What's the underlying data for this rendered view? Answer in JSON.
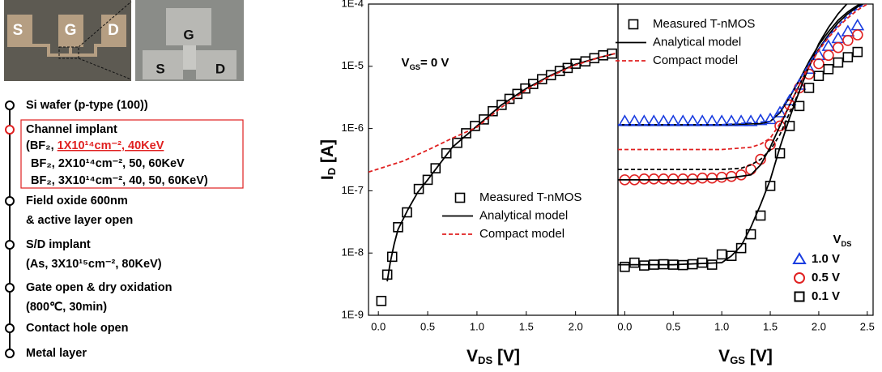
{
  "micrograph": {
    "left_labels": [
      "S",
      "G",
      "D"
    ],
    "right_labels": [
      "G",
      "S",
      "D"
    ]
  },
  "process_flow": {
    "steps": [
      {
        "lines": [
          "Si wafer (p-type (100))"
        ]
      },
      {
        "lines": [
          "Channel implant",
          "(BF₂, ",
          "1X10¹⁴cm⁻², 40KeV",
          "BF₂, 2X10¹⁴cm⁻², 50, 60KeV",
          "BF₂, 3X10¹⁴cm⁻², 40, 50, 60KeV)"
        ],
        "highlight": "#e02020"
      },
      {
        "lines": [
          "Field oxide 600nm",
          "& active layer open"
        ]
      },
      {
        "lines": [
          "S/D implant",
          "(As, 3X10¹⁵cm⁻², 80KeV)"
        ]
      },
      {
        "lines": [
          "Gate open & dry oxidation",
          "(800℃, 30min)"
        ]
      },
      {
        "lines": [
          "Contact hole open"
        ]
      },
      {
        "lines": [
          "Metal layer"
        ]
      }
    ]
  },
  "chart_data": [
    {
      "type": "line",
      "yscale": "log",
      "xlabel": {
        "text": "V",
        "sub": "DS",
        "suffix": " [V]"
      },
      "ylabel": {
        "text": "I",
        "sub": "D",
        "suffix": " [A]"
      },
      "annotation": {
        "text": "V",
        "sub": "GS",
        "suffix": "= 0 V"
      },
      "xlim": [
        -0.1,
        2.43
      ],
      "ylim": [
        1e-09,
        0.0001
      ],
      "xticks": [
        {
          "value": 0,
          "label": "0.0"
        },
        {
          "value": 0.5,
          "label": "0.5"
        },
        {
          "value": 1,
          "label": "1.0"
        },
        {
          "value": 1.5,
          "label": "1.5"
        },
        {
          "value": 2,
          "label": "2.0"
        }
      ],
      "yticks": [
        {
          "value": 1e-09,
          "label": "1E-9"
        },
        {
          "value": 1e-08,
          "label": "1E-8"
        },
        {
          "value": 1e-07,
          "label": "1E-7"
        },
        {
          "value": 1e-06,
          "label": "1E-6"
        },
        {
          "value": 1e-05,
          "label": "1E-5"
        },
        {
          "value": 0.0001,
          "label": "1E-4"
        }
      ],
      "legend": [
        "Measured T-nMOS",
        "Analytical model",
        "Compact model"
      ],
      "series": [
        {
          "marker": "square",
          "color": "#000000",
          "x": [
            0.03,
            0.09,
            0.14,
            0.2,
            0.29,
            0.41,
            0.5,
            0.58,
            0.69,
            0.8,
            0.89,
            0.98,
            1.07,
            1.16,
            1.25,
            1.33,
            1.41,
            1.49,
            1.57,
            1.66,
            1.75,
            1.84,
            1.92,
            2.0,
            2.1,
            2.19,
            2.28,
            2.37
          ],
          "values": [
            1.7e-09,
            4.5e-09,
            8.7e-09,
            2.6e-08,
            4.5e-08,
            1.07e-07,
            1.5e-07,
            2.3e-07,
            4e-07,
            5.9e-07,
            8.4e-07,
            1.1e-06,
            1.4e-06,
            1.9e-06,
            2.4e-06,
            3e-06,
            3.6e-06,
            4.4e-06,
            5.2e-06,
            6.2e-06,
            7.2e-06,
            8.4e-06,
            9.4e-06,
            1.1e-05,
            1.2e-05,
            1.35e-05,
            1.5e-05,
            1.6e-05
          ]
        },
        {
          "style": "solid",
          "color": "#000000",
          "x": [
            0.09,
            0.12,
            0.16,
            0.2,
            0.3,
            0.4,
            0.5,
            0.75,
            1.0,
            1.25,
            1.5,
            1.75,
            2.0,
            2.25,
            2.4
          ],
          "values": [
            3.5e-09,
            7e-09,
            1.4e-08,
            2.4e-08,
            5e-08,
            9.5e-08,
            1.5e-07,
            5e-07,
            1.1e-06,
            2.4e-06,
            4.4e-06,
            7.2e-06,
            1.08e-05,
            1.4e-05,
            1.6e-05
          ]
        },
        {
          "style": "dashed",
          "color": "#e02020",
          "x": [
            -0.1,
            0.25,
            0.5,
            0.75,
            1.0,
            1.25,
            1.5,
            1.75,
            2.0,
            2.25,
            2.4
          ],
          "values": [
            2e-07,
            3e-07,
            4.5e-07,
            7e-07,
            1.05e-06,
            2.2e-06,
            4.2e-06,
            7e-06,
            1.05e-05,
            1.4e-05,
            1.6e-05
          ]
        }
      ]
    },
    {
      "type": "line",
      "yscale": "log",
      "xlabel": {
        "text": "V",
        "sub": "GS",
        "suffix": " [V]"
      },
      "xlim": [
        -0.07,
        2.56
      ],
      "ylim": [
        1e-09,
        0.0001
      ],
      "xticks": [
        {
          "value": 0,
          "label": "0.0"
        },
        {
          "value": 0.5,
          "label": "0.5"
        },
        {
          "value": 1,
          "label": "1.0"
        },
        {
          "value": 1.5,
          "label": "1.5"
        },
        {
          "value": 2,
          "label": "2.0"
        },
        {
          "value": 2.5,
          "label": "2.5"
        }
      ],
      "legend": [
        "Measured T-nMOS",
        "Analytical model",
        "Compact model"
      ],
      "vds_legend": {
        "title": {
          "text": "V",
          "sub": "DS"
        },
        "items": [
          "1.0 V",
          "0.5 V",
          "0.1 V"
        ],
        "markers": [
          "triangle",
          "circle",
          "square"
        ],
        "colors": [
          "#1a3de0",
          "#e02020",
          "#000000"
        ]
      },
      "series": [
        {
          "marker": "triangle",
          "color": "#1a3de0",
          "x": [
            0,
            0.1,
            0.2,
            0.3,
            0.4,
            0.5,
            0.6,
            0.7,
            0.8,
            0.9,
            1.0,
            1.1,
            1.2,
            1.3,
            1.4,
            1.5,
            1.6,
            1.7,
            1.8,
            1.9,
            2.0,
            2.1,
            2.2,
            2.3,
            2.4
          ],
          "values": [
            1.3e-06,
            1.3e-06,
            1.3e-06,
            1.3e-06,
            1.3e-06,
            1.3e-06,
            1.3e-06,
            1.3e-06,
            1.3e-06,
            1.3e-06,
            1.3e-06,
            1.3e-06,
            1.3e-06,
            1.3e-06,
            1.35e-06,
            1.4e-06,
            1.8e-06,
            2.8e-06,
            5e-06,
            9e-06,
            1.5e-05,
            2.1e-05,
            2.8e-05,
            3.6e-05,
            4.5e-05
          ]
        },
        {
          "marker": "circle",
          "color": "#e02020",
          "x": [
            0,
            0.1,
            0.2,
            0.3,
            0.4,
            0.5,
            0.6,
            0.7,
            0.8,
            0.9,
            1.0,
            1.1,
            1.2,
            1.3,
            1.4,
            1.5,
            1.6,
            1.7,
            1.8,
            1.9,
            2.0,
            2.1,
            2.2,
            2.3,
            2.4
          ],
          "values": [
            1.5e-07,
            1.5e-07,
            1.55e-07,
            1.55e-07,
            1.55e-07,
            1.55e-07,
            1.55e-07,
            1.55e-07,
            1.6e-07,
            1.6e-07,
            1.65e-07,
            1.7e-07,
            1.8e-07,
            2.2e-07,
            3.2e-07,
            5.5e-07,
            1.1e-06,
            2.4e-06,
            4.5e-06,
            7.5e-06,
            1.1e-05,
            1.5e-05,
            2e-05,
            2.6e-05,
            3.2e-05
          ]
        },
        {
          "marker": "square",
          "color": "#000000",
          "x": [
            0,
            0.1,
            0.2,
            0.3,
            0.4,
            0.5,
            0.6,
            0.7,
            0.8,
            0.9,
            1.0,
            1.1,
            1.2,
            1.3,
            1.4,
            1.5,
            1.6,
            1.7,
            1.8,
            1.9,
            2.0,
            2.1,
            2.2,
            2.3,
            2.4
          ],
          "values": [
            6e-09,
            7e-09,
            6.3e-09,
            6.5e-09,
            6.6e-09,
            6.5e-09,
            6.4e-09,
            6.6e-09,
            7e-09,
            6.5e-09,
            9.5e-09,
            9e-09,
            1.2e-08,
            2e-08,
            4e-08,
            1.2e-07,
            4e-07,
            1.1e-06,
            2.3e-06,
            4.5e-06,
            7e-06,
            9e-06,
            1.15e-05,
            1.4e-05,
            1.7e-05
          ]
        },
        {
          "style": "solid",
          "color": "#000000",
          "x": [
            -0.07,
            0.5,
            1.0,
            1.4,
            1.5,
            1.6,
            1.7,
            1.8,
            1.9,
            2.0,
            2.1,
            2.2,
            2.3,
            2.4,
            2.5
          ],
          "values": [
            1.15e-06,
            1.15e-06,
            1.15e-06,
            1.2e-06,
            1.3e-06,
            1.8e-06,
            3.2e-06,
            6e-06,
            1.2e-05,
            2.2e-05,
            3.6e-05,
            5.5e-05,
            7.5e-05,
            9.5e-05,
            0.000115
          ]
        },
        {
          "style": "solid",
          "color": "#000000",
          "x": [
            -0.07,
            0.5,
            1.0,
            1.3,
            1.4,
            1.5,
            1.6,
            1.7,
            1.8,
            1.9,
            2.0,
            2.1,
            2.2,
            2.3,
            2.4,
            2.5
          ],
          "values": [
            1.5e-07,
            1.5e-07,
            1.55e-07,
            1.8e-07,
            2.6e-07,
            5e-07,
            1.1e-06,
            2.4e-06,
            5e-06,
            1e-05,
            1.9e-05,
            3.2e-05,
            5e-05,
            7e-05,
            9e-05,
            0.00011
          ]
        },
        {
          "style": "solid",
          "color": "#000000",
          "x": [
            -0.07,
            0.5,
            1.0,
            1.1,
            1.2,
            1.3,
            1.4,
            1.5,
            1.6,
            1.7,
            1.8,
            1.9,
            2.0,
            2.1,
            2.2,
            2.3,
            2.4
          ],
          "values": [
            6.5e-09,
            6.5e-09,
            7e-09,
            9e-09,
            1.3e-08,
            2.6e-08,
            6e-08,
            1.5e-07,
            5e-07,
            1.5e-06,
            4e-06,
            1e-05,
            2.3e-05,
            4.2e-05,
            7e-05,
            0.000105,
            0.00014
          ]
        },
        {
          "style": "dashed",
          "color": "#1a3de0",
          "x": [
            -0.07,
            0.5,
            1.0,
            1.5,
            1.6,
            1.7,
            1.8,
            1.9,
            2.0,
            2.1,
            2.2,
            2.3,
            2.4,
            2.5
          ],
          "values": [
            1.15e-06,
            1.15e-06,
            1.15e-06,
            1.3e-06,
            1.9e-06,
            3.3e-06,
            6e-06,
            1.1e-05,
            1.9e-05,
            3e-05,
            4.5e-05,
            6.5e-05,
            8.5e-05,
            0.000105
          ]
        },
        {
          "style": "dashed",
          "color": "#e02020",
          "x": [
            -0.07,
            0.5,
            1.0,
            1.3,
            1.4,
            1.5,
            1.6,
            1.7,
            1.8,
            1.9,
            2.0,
            2.1,
            2.2,
            2.3,
            2.4,
            2.5
          ],
          "values": [
            4.6e-07,
            4.6e-07,
            4.6e-07,
            5e-07,
            5.6e-07,
            7e-07,
            1.2e-06,
            2.4e-06,
            5e-06,
            1e-05,
            1.8e-05,
            2.9e-05,
            4.3e-05,
            6e-05,
            8e-05,
            0.0001
          ]
        },
        {
          "style": "dashed",
          "color": "#000000",
          "x": [
            -0.07,
            0.5,
            1.0,
            1.2,
            1.3,
            1.4,
            1.5,
            1.6,
            1.7,
            1.8
          ],
          "values": [
            2.2e-07,
            2.2e-07,
            2.2e-07,
            2.3e-07,
            2.6e-07,
            3.2e-07,
            4.5e-07,
            8e-07,
            1.8e-06,
            4e-06
          ]
        }
      ]
    }
  ]
}
